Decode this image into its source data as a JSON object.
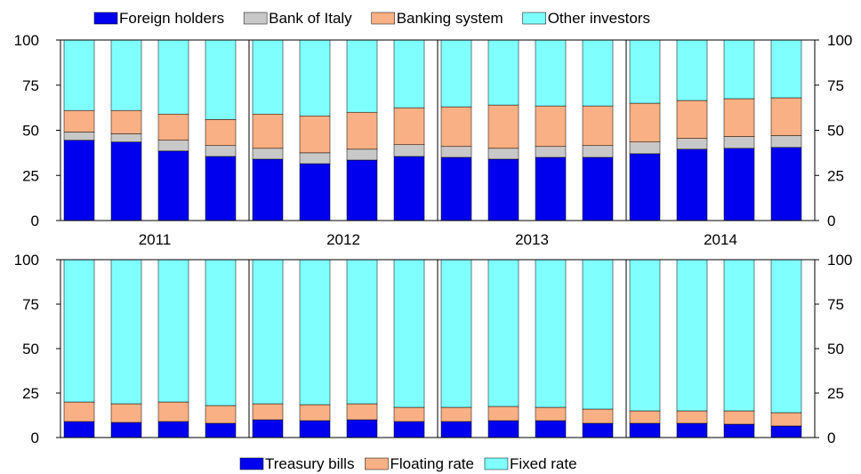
{
  "colors": {
    "foreign_holders": "#0000ee",
    "bank_of_italy": "#c8c8c8",
    "banking_system": "#f9b084",
    "other_investors": "#80ffff",
    "treasury_bills": "#0000ee",
    "floating_rate": "#f9b084",
    "fixed_rate": "#80ffff"
  },
  "chart_data": [
    {
      "type": "bar",
      "stacked": true,
      "legend_position": "top",
      "year_labels": [
        "2011",
        "2012",
        "2013",
        "2014"
      ],
      "bars_per_year": 4,
      "ylim": [
        0,
        100
      ],
      "yticks": [
        "0",
        "25",
        "50",
        "75",
        "100"
      ],
      "y_axis": "left and right",
      "series": [
        {
          "name": "Foreign holders",
          "color": "#0000ee",
          "values": [
            44.5,
            43.5,
            38.5,
            35.5,
            34.0,
            31.5,
            33.5,
            35.5,
            35.0,
            34.0,
            35.0,
            35.0,
            37.0,
            39.5,
            40.0,
            40.5
          ]
        },
        {
          "name": "Bank of Italy",
          "color": "#c8c8c8",
          "values": [
            4.5,
            4.5,
            6.0,
            6.0,
            6.0,
            6.0,
            6.0,
            6.5,
            6.0,
            6.0,
            6.0,
            6.5,
            6.5,
            6.0,
            6.5,
            6.5
          ]
        },
        {
          "name": "Banking system",
          "color": "#f9b084",
          "values": [
            12.0,
            13.0,
            14.5,
            14.5,
            19.0,
            20.5,
            20.5,
            20.5,
            22.0,
            24.0,
            22.5,
            22.0,
            21.5,
            21.0,
            21.0,
            21.0
          ]
        },
        {
          "name": "Other investors",
          "color": "#80ffff",
          "values": [
            39.0,
            39.0,
            41.0,
            44.0,
            41.0,
            42.0,
            40.0,
            37.5,
            37.0,
            36.0,
            36.5,
            36.5,
            35.0,
            33.5,
            32.5,
            32.0
          ]
        }
      ]
    },
    {
      "type": "bar",
      "stacked": true,
      "legend_position": "bottom",
      "bars_per_year": 4,
      "ylim": [
        0,
        100
      ],
      "yticks": [
        "0",
        "25",
        "50",
        "75",
        "100"
      ],
      "y_axis": "left and right",
      "series": [
        {
          "name": "Treasury bills",
          "color": "#0000ee",
          "values": [
            9.0,
            8.5,
            9.0,
            8.0,
            10.0,
            9.5,
            10.0,
            9.0,
            9.0,
            9.5,
            9.5,
            8.0,
            8.0,
            8.0,
            7.5,
            6.5
          ]
        },
        {
          "name": "Floating rate",
          "color": "#f9b084",
          "values": [
            11.0,
            10.5,
            11.0,
            10.0,
            9.0,
            9.0,
            9.0,
            8.0,
            8.0,
            8.0,
            7.5,
            8.0,
            7.0,
            7.0,
            7.5,
            7.5
          ]
        },
        {
          "name": "Fixed rate",
          "color": "#80ffff",
          "values": [
            80.0,
            81.0,
            80.0,
            82.0,
            81.0,
            81.5,
            81.0,
            83.0,
            83.0,
            82.5,
            83.0,
            84.0,
            85.0,
            85.0,
            85.0,
            86.0
          ]
        }
      ]
    }
  ]
}
